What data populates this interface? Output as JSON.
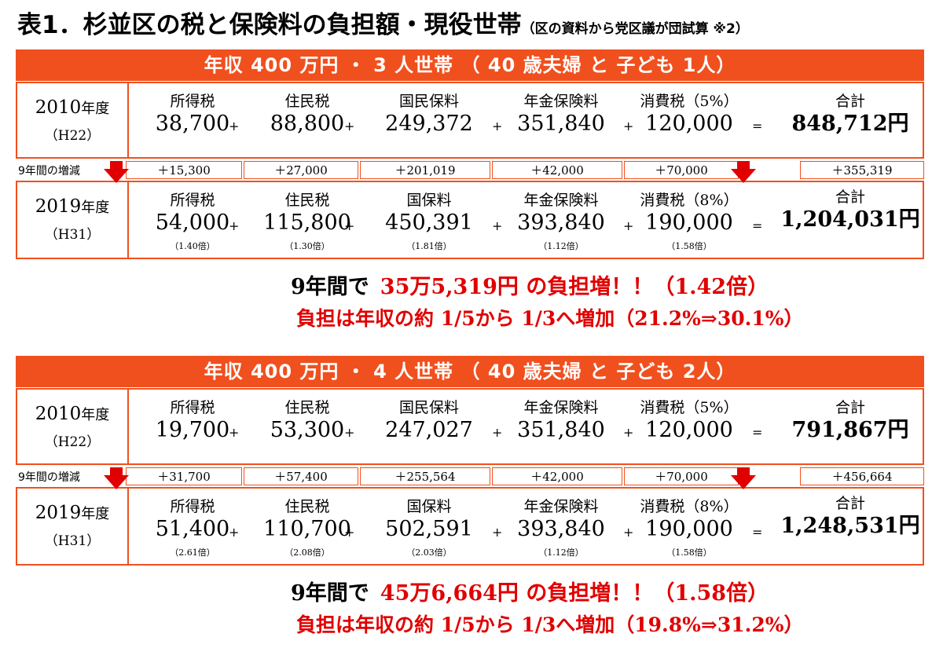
{
  "title": "表1．杉並区の税と保険料の負担額・現役世帯",
  "subtitle": "（区の資料から党区議が団試算 ※2）",
  "increase_label": "9年間の増減",
  "sections": [
    {
      "banner": "年収 400 万円 ・ 3 人世帯 （ 40 歳夫婦 と 子ども 1人）",
      "row2010": {
        "year": "2010",
        "year_suffix": "年度",
        "era": "（H22）",
        "labels": [
          "所得税",
          "住民税",
          "国民保料",
          "年金保険料",
          "消費税（5%）"
        ],
        "values": [
          "38,700",
          "88,800",
          "249,372",
          "351,840",
          "120,000"
        ],
        "total_label": "合計",
        "total": "848,712円"
      },
      "increase": [
        "＋15,300",
        "＋27,000",
        "＋201,019",
        "＋42,000",
        "＋70,000",
        "＋355,319"
      ],
      "row2019": {
        "year": "2019",
        "year_suffix": "年度",
        "era": "（H31）",
        "labels": [
          "所得税",
          "住民税",
          "国保料",
          "年金保険料",
          "消費税（8%）"
        ],
        "values": [
          "54,000",
          "115,800",
          "450,391",
          "393,840",
          "190,000"
        ],
        "ratios": [
          "（1.40倍）",
          "（1.30倍）",
          "（1.81倍）",
          "（1.12倍）",
          "（1.58倍）"
        ],
        "total_label": "合計",
        "total": "1,204,031円"
      },
      "summary_a": "9年間で",
      "summary_b": "35万5,319円 の負担増！！（1.42倍）",
      "summary2": "負担は年収の約 1/5から 1/3へ増加（21.2%⇒30.1%）"
    },
    {
      "banner": "年収 400 万円 ・ 4 人世帯 （ 40 歳夫婦 と 子ども 2人）",
      "row2010": {
        "year": "2010",
        "year_suffix": "年度",
        "era": "（H22）",
        "labels": [
          "所得税",
          "住民税",
          "国民保料",
          "年金保険料",
          "消費税（5%）"
        ],
        "values": [
          "19,700",
          "53,300",
          "247,027",
          "351,840",
          "120,000"
        ],
        "total_label": "合計",
        "total": "791,867円"
      },
      "increase": [
        "＋31,700",
        "＋57,400",
        "＋255,564",
        "＋42,000",
        "＋70,000",
        "＋456,664"
      ],
      "row2019": {
        "year": "2019",
        "year_suffix": "年度",
        "era": "（H31）",
        "labels": [
          "所得税",
          "住民税",
          "国保料",
          "年金保険料",
          "消費税（8%）"
        ],
        "values": [
          "51,400",
          "110,700",
          "502,591",
          "393,840",
          "190,000"
        ],
        "ratios": [
          "（2.61倍）",
          "（2.08倍）",
          "（2.03倍）",
          "（1.12倍）",
          "（1.58倍）"
        ],
        "total_label": "合計",
        "total": "1,248,531円"
      },
      "summary_a": "9年間で",
      "summary_b": "45万6,664円 の負担増！！（1.58倍）",
      "summary2": "負担は年収の約 1/5から 1/3へ増加（19.8%⇒31.2%）"
    }
  ],
  "ops": [
    "+",
    "+",
    "+",
    "+",
    "="
  ],
  "colors": {
    "accent": "#F0501E",
    "highlight": "#E00000"
  }
}
